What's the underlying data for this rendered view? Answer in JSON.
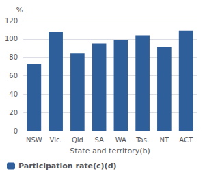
{
  "chart_data": {
    "type": "bar",
    "ylabel": "%",
    "xlabel": "State and territory(b)",
    "categories": [
      "NSW",
      "Vic.",
      "Qld",
      "SA",
      "WA",
      "Tas.",
      "NT",
      "ACT"
    ],
    "series": [
      {
        "name": "Participation rate(c)(d)",
        "color": "#2E5F9A",
        "values": [
          73,
          108,
          84,
          95,
          99,
          104,
          91,
          109
        ]
      }
    ],
    "ylim": [
      0,
      120
    ],
    "yticks": [
      0,
      20,
      40,
      60,
      80,
      100,
      120
    ],
    "grid": true,
    "legend": "lower left"
  }
}
